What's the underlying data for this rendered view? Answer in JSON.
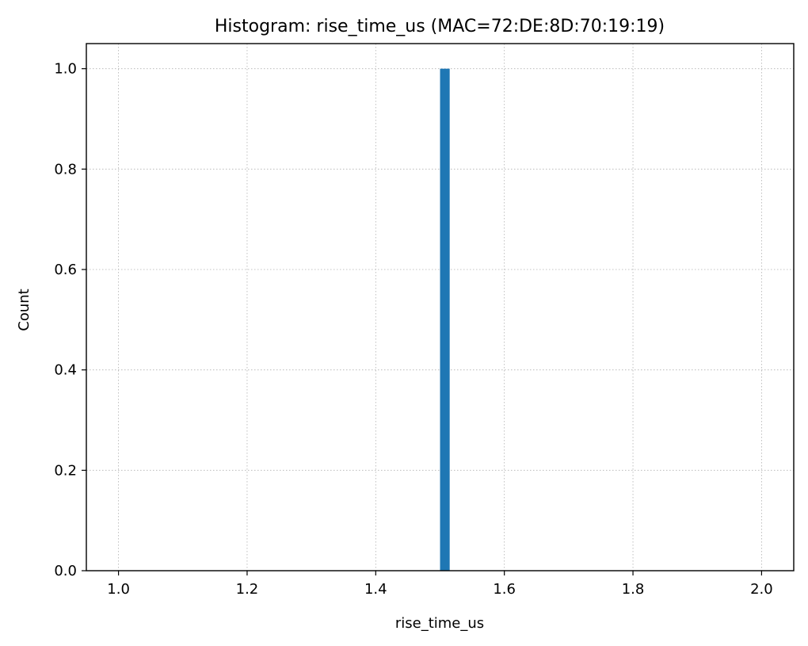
{
  "chart_data": {
    "type": "bar",
    "title": "Histogram: rise_time_us (MAC=72:DE:8D:70:19:19)",
    "xlabel": "rise_time_us",
    "ylabel": "Count",
    "xlim": [
      0.95,
      2.05
    ],
    "ylim": [
      0,
      1.05
    ],
    "xticks": [
      1.0,
      1.2,
      1.4,
      1.6,
      1.8,
      2.0
    ],
    "xtick_labels": [
      "1.0",
      "1.2",
      "1.4",
      "1.6",
      "1.8",
      "2.0"
    ],
    "yticks": [
      0.0,
      0.2,
      0.4,
      0.6,
      0.8,
      1.0
    ],
    "ytick_labels": [
      "0.0",
      "0.2",
      "0.4",
      "0.6",
      "0.8",
      "1.0"
    ],
    "grid": true,
    "bars": [
      {
        "x_start": 1.5,
        "x_end": 1.515,
        "value": 1
      }
    ],
    "colors": {
      "bar": "#1f77b4"
    }
  }
}
